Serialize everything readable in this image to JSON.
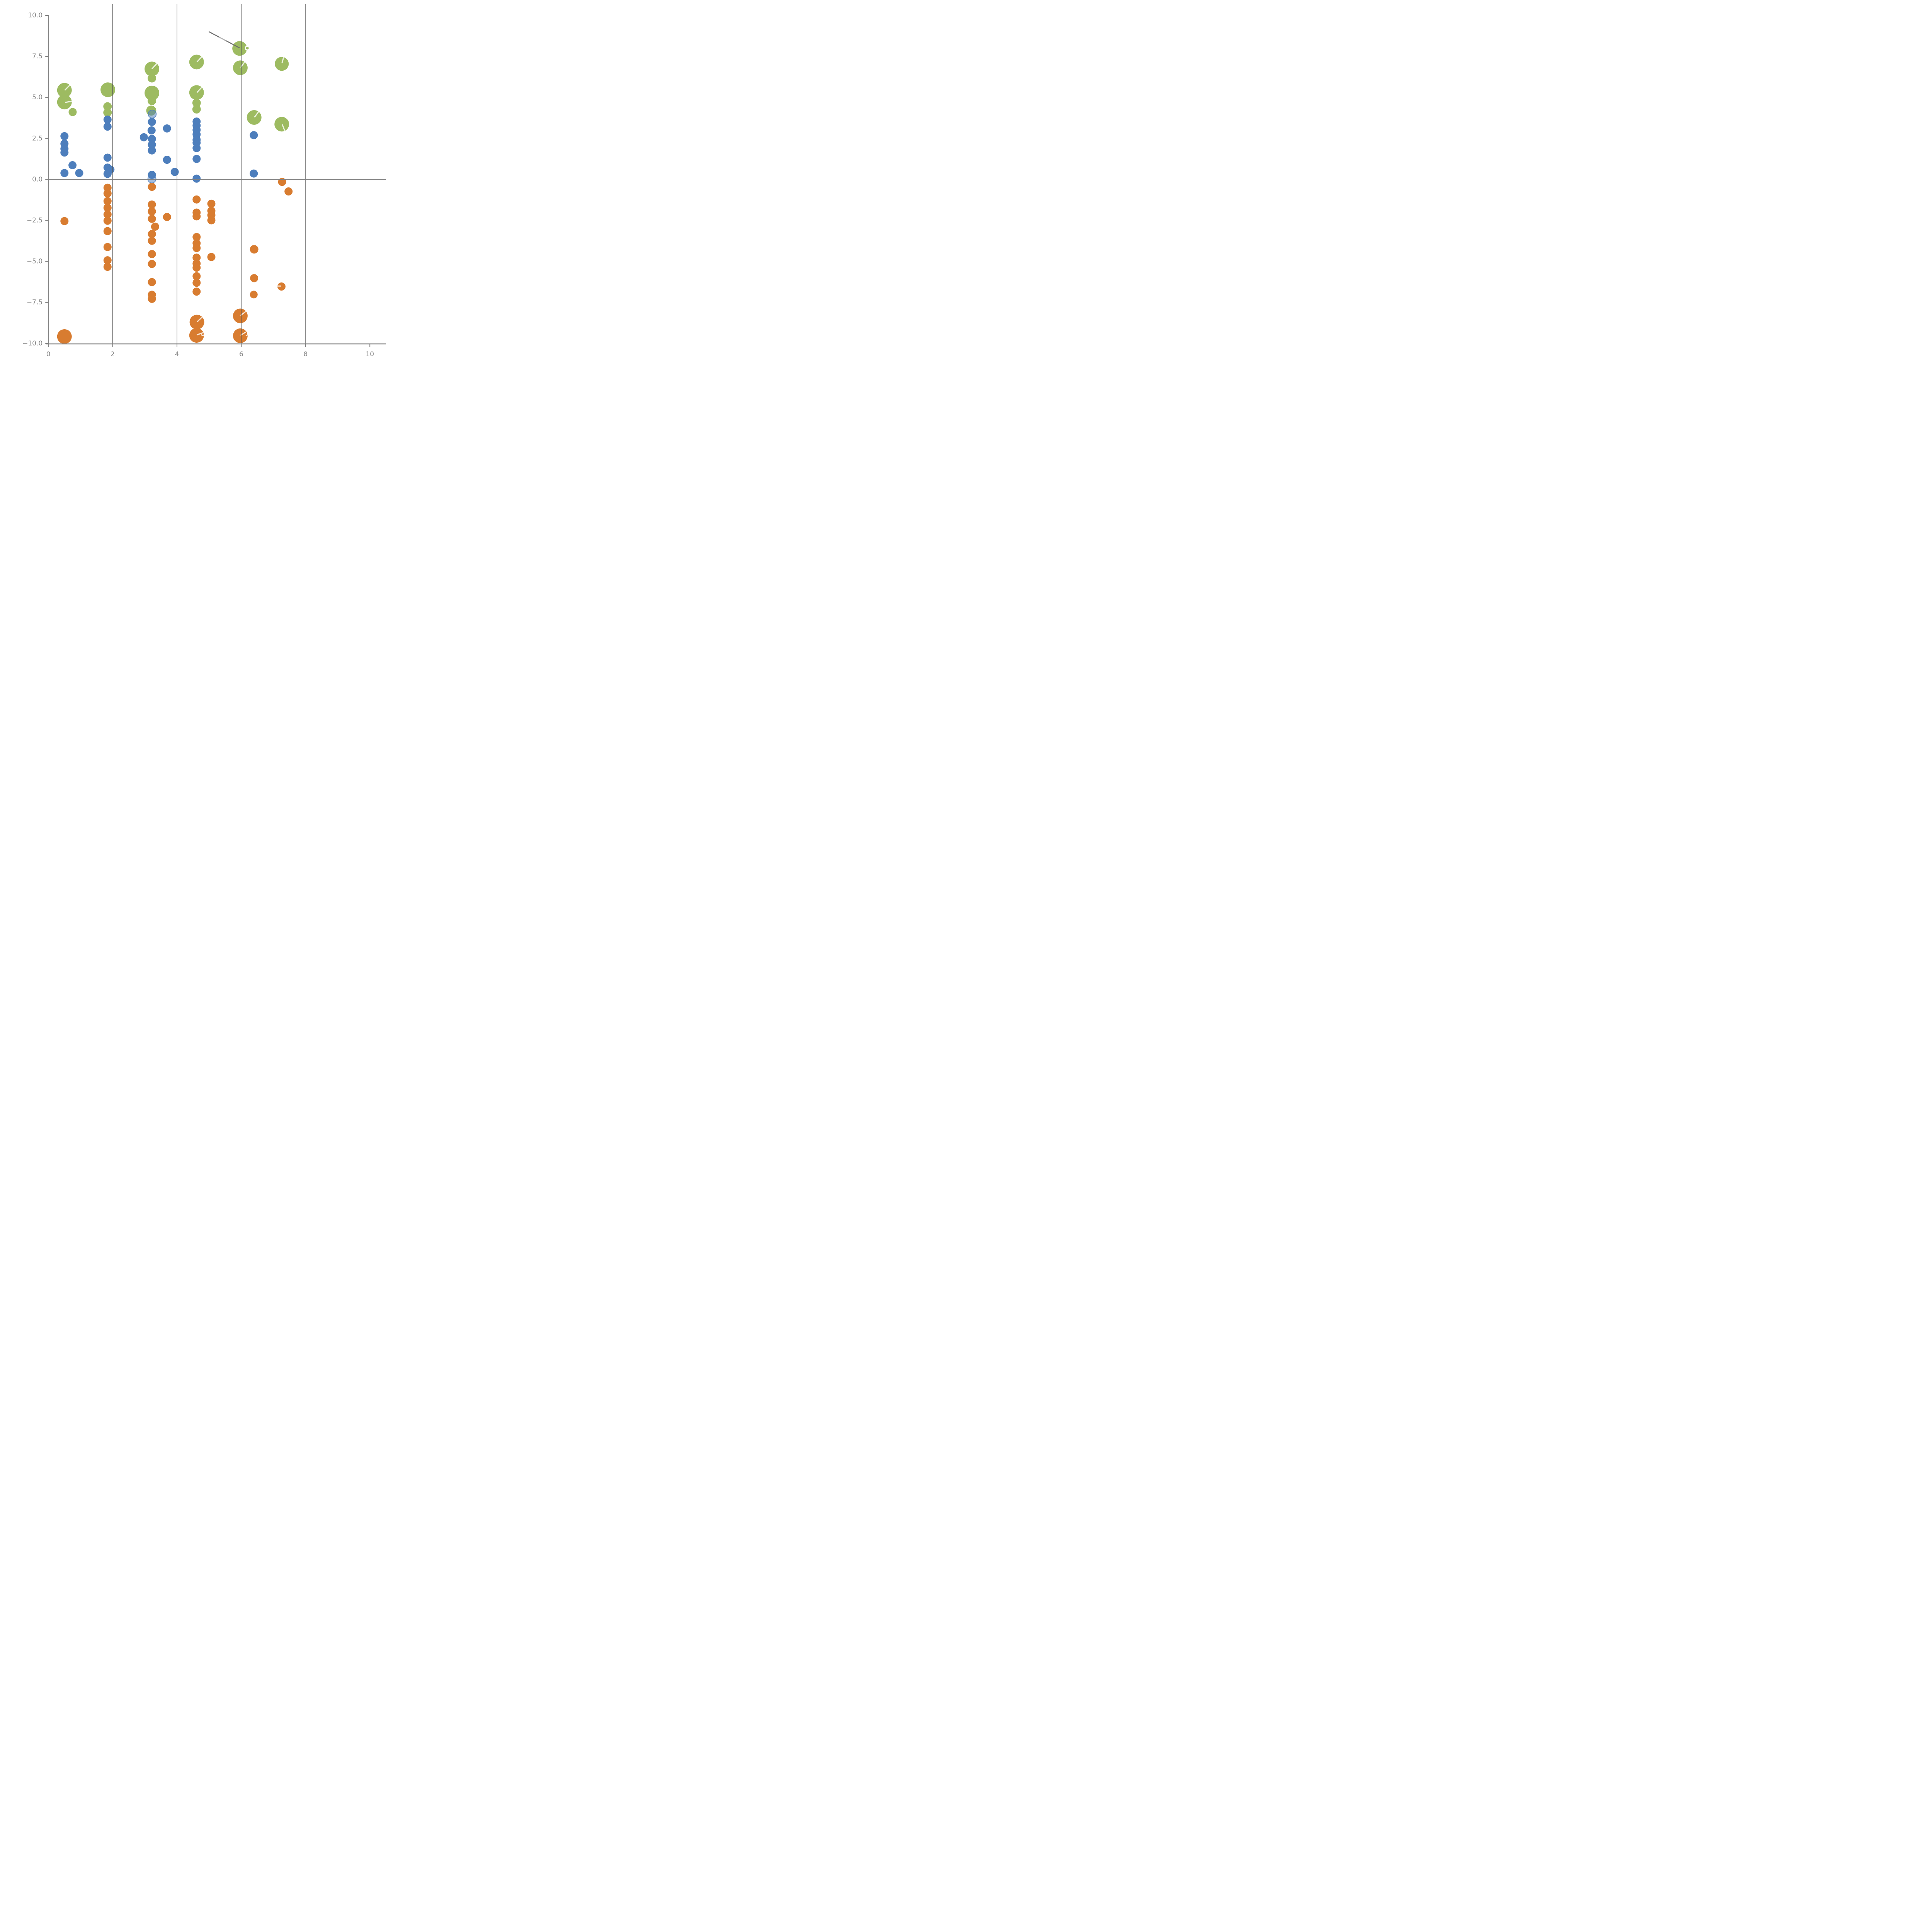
{
  "chart_data": {
    "type": "scatter",
    "title": "",
    "xlabel": "",
    "ylabel": "",
    "xlim": [
      0,
      10
    ],
    "ylim": [
      -10,
      10
    ],
    "grid": "vertical-only",
    "legend": "none",
    "x_ticks": [
      0,
      2,
      4,
      6,
      8,
      10
    ],
    "x_tick_labels": [
      "0",
      "2",
      "4",
      "6",
      "8",
      "10"
    ],
    "y_ticks": [
      10,
      7.5,
      5,
      2.5,
      0,
      -2.5,
      -5,
      -7.5,
      -10
    ],
    "y_tick_labels": [
      "10.0",
      "7.5",
      "5.0",
      "2.5",
      "0.0",
      "−2.5",
      "−5.0",
      "−7.5",
      "−10.0"
    ],
    "grid_x": [
      2,
      4,
      6,
      8
    ],
    "zero_line_y": 0,
    "colors": {
      "green": "#9dbb61",
      "blue": "#4d7ebc",
      "orange": "#d87c30",
      "axis_gray": "#808080",
      "grid_gray": "#555555",
      "label_gray": "#858585",
      "annotation_gray": "#6f6f6f",
      "white_mark": "rgba(255,255,255,0.8)"
    },
    "series": [
      {
        "name": "green-bubbles",
        "color": "#9dbb61",
        "points": [
          [
            0.5,
            5.44,
            19
          ],
          [
            0.5,
            4.72,
            19
          ],
          [
            0.755,
            4.11,
            10.5
          ],
          [
            1.85,
            5.47,
            19
          ],
          [
            1.84,
            4.45,
            11
          ],
          [
            1.84,
            4.08,
            11
          ],
          [
            3.22,
            6.74,
            19
          ],
          [
            3.22,
            6.17,
            11
          ],
          [
            3.22,
            5.27,
            19
          ],
          [
            3.22,
            4.79,
            11
          ],
          [
            3.2,
            4.2,
            13
          ],
          [
            4.61,
            7.16,
            19
          ],
          [
            4.61,
            5.3,
            19
          ],
          [
            4.61,
            4.67,
            11
          ],
          [
            4.61,
            4.28,
            11
          ],
          [
            5.95,
            7.99,
            19
          ],
          [
            5.97,
            6.81,
            19
          ],
          [
            7.26,
            7.05,
            18
          ],
          [
            6.4,
            3.78,
            19
          ],
          [
            7.26,
            3.37,
            19
          ]
        ]
      },
      {
        "name": "blue-bubbles",
        "color": "#4d7ebc",
        "points": [
          [
            0.5,
            2.64,
            10.5
          ],
          [
            0.5,
            2.18,
            10.5
          ],
          [
            0.5,
            1.87,
            10.5
          ],
          [
            0.5,
            1.64,
            10.5
          ],
          [
            0.75,
            0.87,
            10.5
          ],
          [
            0.5,
            0.39,
            10.5
          ],
          [
            0.96,
            0.39,
            10.5
          ],
          [
            1.84,
            3.65,
            10.5
          ],
          [
            1.84,
            3.22,
            10.5
          ],
          [
            1.84,
            1.33,
            10.5
          ],
          [
            1.84,
            0.72,
            10.5
          ],
          [
            1.93,
            0.6,
            10.5
          ],
          [
            1.84,
            0.34,
            10.5
          ],
          [
            2.97,
            2.57,
            10.5
          ],
          [
            3.22,
            3.51,
            10.5
          ],
          [
            3.21,
            2.99,
            10.5
          ],
          [
            3.22,
            2.47,
            10.5
          ],
          [
            3.22,
            2.12,
            10.5
          ],
          [
            3.22,
            1.77,
            10.5
          ],
          [
            3.22,
            0.28,
            10.5
          ],
          [
            3.69,
            3.11,
            10.5
          ],
          [
            3.69,
            1.2,
            10.5
          ],
          [
            3.93,
            0.46,
            10.5
          ],
          [
            4.61,
            3.53,
            10.5
          ],
          [
            4.61,
            3.29,
            10.5
          ],
          [
            4.61,
            3.02,
            10.5
          ],
          [
            4.61,
            2.75,
            10.5
          ],
          [
            4.61,
            2.42,
            10.5
          ],
          [
            4.61,
            2.24,
            10.5
          ],
          [
            4.61,
            1.91,
            10.5
          ],
          [
            4.61,
            1.25,
            10.5
          ],
          [
            4.61,
            0.05,
            10.5
          ],
          [
            6.39,
            2.7,
            10.5
          ],
          [
            6.39,
            0.36,
            10.5
          ]
        ]
      },
      {
        "name": "blue-translucent-rings",
        "color": "#4d7ebc",
        "alpha": 0.5,
        "ring": true,
        "points": [
          [
            3.23,
            3.99,
            10.5
          ],
          [
            3.22,
            0.03,
            10.5
          ]
        ]
      },
      {
        "name": "orange-bubbles",
        "color": "#d87c30",
        "points": [
          [
            0.5,
            -2.54,
            10.5
          ],
          [
            0.5,
            -9.58,
            19
          ],
          [
            1.84,
            -0.51,
            10.5
          ],
          [
            1.84,
            -0.85,
            10.5
          ],
          [
            1.84,
            -1.32,
            10.5
          ],
          [
            1.84,
            -1.73,
            10.5
          ],
          [
            1.84,
            -2.13,
            10.5
          ],
          [
            1.84,
            -2.52,
            10.5
          ],
          [
            1.84,
            -3.15,
            10.5
          ],
          [
            1.84,
            -4.12,
            10.5
          ],
          [
            1.84,
            -4.93,
            10.5
          ],
          [
            1.84,
            -5.33,
            10.5
          ],
          [
            3.22,
            -0.45,
            10.5
          ],
          [
            3.22,
            -1.53,
            10.5
          ],
          [
            3.22,
            -1.95,
            10.5
          ],
          [
            3.22,
            -2.4,
            10.5
          ],
          [
            3.32,
            -2.88,
            10.5
          ],
          [
            3.69,
            -2.29,
            10.5
          ],
          [
            3.22,
            -3.33,
            10.5
          ],
          [
            3.22,
            -3.74,
            10.5
          ],
          [
            3.22,
            -4.55,
            10.5
          ],
          [
            3.22,
            -5.15,
            10.5
          ],
          [
            3.22,
            -6.26,
            10.5
          ],
          [
            3.22,
            -7.03,
            10.5
          ],
          [
            3.22,
            -7.28,
            10.5
          ],
          [
            4.61,
            -1.22,
            10.5
          ],
          [
            4.61,
            -2.02,
            10.5
          ],
          [
            4.61,
            -2.25,
            10.5
          ],
          [
            4.61,
            -3.51,
            10.5
          ],
          [
            4.61,
            -3.89,
            10.5
          ],
          [
            4.61,
            -4.18,
            10.5
          ],
          [
            4.61,
            -4.77,
            10.5
          ],
          [
            4.61,
            -5.13,
            10.5
          ],
          [
            4.61,
            -5.38,
            10.5
          ],
          [
            4.61,
            -5.9,
            10.5
          ],
          [
            4.61,
            -6.3,
            10.5
          ],
          [
            4.61,
            -6.84,
            10.5
          ],
          [
            5.07,
            -1.48,
            10.5
          ],
          [
            5.07,
            -1.91,
            10.5
          ],
          [
            5.07,
            -2.18,
            10.5
          ],
          [
            5.07,
            -2.49,
            10.5
          ],
          [
            5.07,
            -4.73,
            10.5
          ],
          [
            6.4,
            -4.26,
            11
          ],
          [
            6.4,
            -6.02,
            10.5
          ],
          [
            6.39,
            -7.02,
            10
          ],
          [
            7.25,
            -6.53,
            10.5
          ],
          [
            7.27,
            -0.15,
            10.5
          ],
          [
            7.47,
            -0.73,
            10.5
          ],
          [
            4.62,
            -8.7,
            19
          ],
          [
            4.61,
            -9.51,
            19
          ],
          [
            5.97,
            -8.32,
            19
          ],
          [
            5.97,
            -9.53,
            19
          ]
        ]
      }
    ],
    "green_ring_point": {
      "x": 6.19,
      "y": 8.01,
      "r": 5
    },
    "annotation_line": {
      "x1": 5.0,
      "y1": 9.0,
      "x2": 5.94,
      "y2": 8.03
    },
    "annotation_line_highlight": {
      "x1": 5.33,
      "y1": 8.66,
      "x2": 5.5,
      "y2": 8.49
    },
    "white_marks": [
      [
        0.52,
        5.46,
        0.66,
        5.74
      ],
      [
        0.53,
        4.7,
        0.74,
        4.77
      ],
      [
        3.23,
        6.76,
        3.37,
        7.06
      ],
      [
        4.63,
        7.18,
        4.77,
        7.48
      ],
      [
        4.63,
        5.32,
        4.77,
        5.62
      ],
      [
        5.99,
        6.85,
        6.11,
        7.18
      ],
      [
        7.27,
        7.12,
        7.32,
        7.47
      ],
      [
        6.42,
        3.82,
        6.53,
        4.11
      ],
      [
        7.28,
        3.33,
        7.35,
        2.98
      ],
      [
        5.99,
        -8.28,
        6.14,
        -8.05
      ],
      [
        5.99,
        -9.49,
        6.13,
        -9.32
      ],
      [
        4.64,
        -8.66,
        4.79,
        -8.38
      ],
      [
        4.63,
        -9.47,
        4.79,
        -9.36
      ],
      [
        7.11,
        -6.5,
        7.23,
        -6.5
      ]
    ],
    "white_arcs": [
      {
        "x": 6.15,
        "y": -9.4,
        "r": 5,
        "rot": -60
      },
      {
        "x": 4.8,
        "y": -9.42,
        "r": 4,
        "rot": -40
      }
    ]
  }
}
